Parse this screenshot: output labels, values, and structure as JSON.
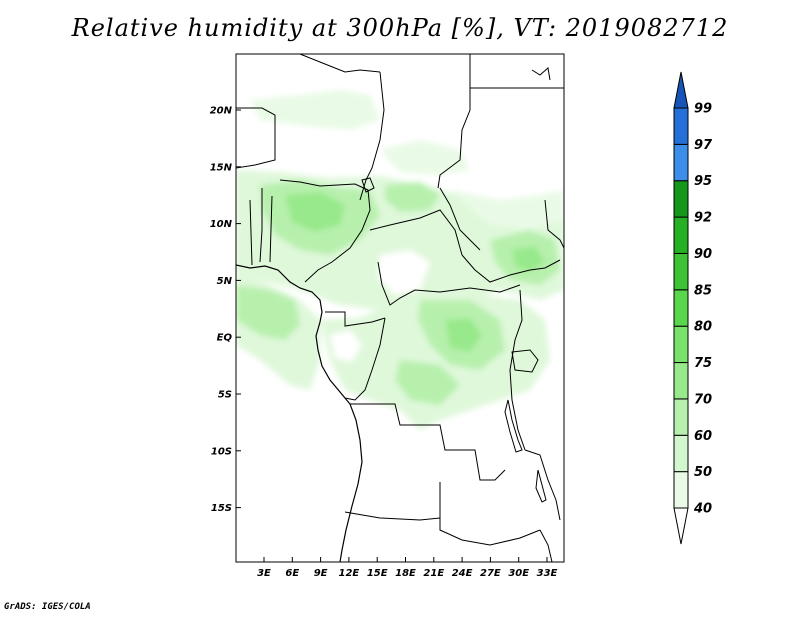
{
  "title": "Relative humidity at 300hPa [%], VT: 2019082712",
  "credit": "GrADS: IGES/COLA",
  "map": {
    "variable": "Relative humidity",
    "level": "300hPa",
    "units": "%",
    "valid_time": "2019082712",
    "lat_labels": [
      "20N",
      "15N",
      "10N",
      "5N",
      "EQ",
      "5S",
      "10S",
      "15S"
    ],
    "lon_labels": [
      "3E",
      "6E",
      "9E",
      "12E",
      "15E",
      "18E",
      "21E",
      "24E",
      "27E",
      "30E",
      "33E"
    ]
  },
  "colorbar": {
    "levels": [
      "40",
      "50",
      "60",
      "70",
      "75",
      "80",
      "85",
      "90",
      "92",
      "95",
      "97",
      "99"
    ],
    "colors": [
      "#ffffff",
      "#e9fbe6",
      "#d2f6cd",
      "#b7f0ad",
      "#98e98b",
      "#79e26b",
      "#59d64c",
      "#3dc436",
      "#26b023",
      "#14971a",
      "#3c8ee8",
      "#2470d8",
      "#1754b8"
    ]
  }
}
